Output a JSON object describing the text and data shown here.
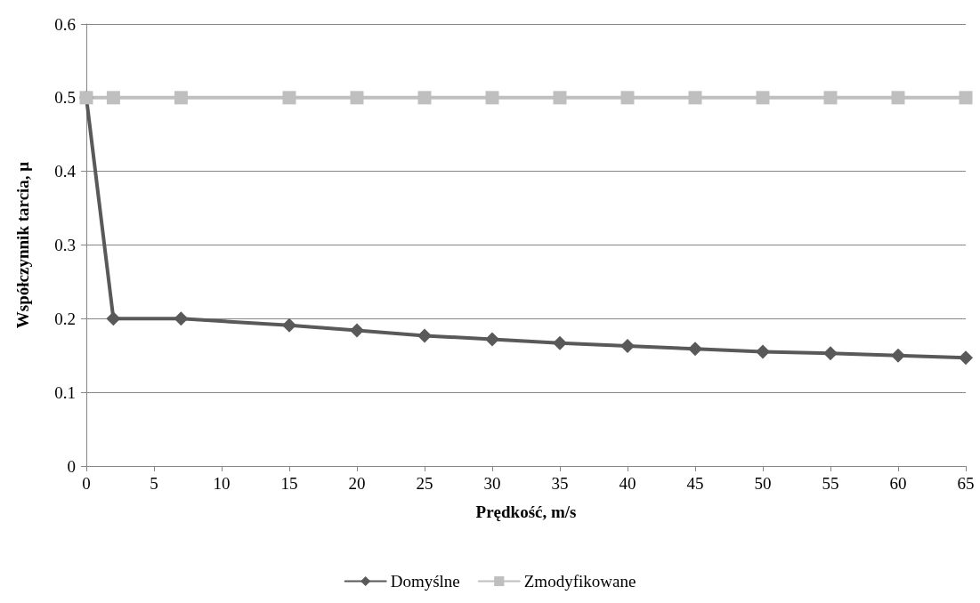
{
  "chart_data": {
    "type": "line",
    "xlabel": "Prędkość, m/s",
    "ylabel": "Współczynnik tarcia, μ",
    "x": [
      0,
      2,
      7,
      15,
      20,
      25,
      30,
      35,
      40,
      45,
      50,
      55,
      60,
      65
    ],
    "series": [
      {
        "name": "Domyślne",
        "color": "#595959",
        "marker": "diamond",
        "values": [
          0.5,
          0.2,
          0.2,
          0.191,
          0.184,
          0.177,
          0.172,
          0.167,
          0.163,
          0.159,
          0.155,
          0.153,
          0.15,
          0.147
        ]
      },
      {
        "name": "Zmodyfikowane",
        "color": "#bfbfbf",
        "marker": "square",
        "values": [
          0.5,
          0.5,
          0.5,
          0.5,
          0.5,
          0.5,
          0.5,
          0.5,
          0.5,
          0.5,
          0.5,
          0.5,
          0.5,
          0.5
        ]
      }
    ],
    "xlim": [
      0,
      65
    ],
    "xticks": [
      0,
      5,
      10,
      15,
      20,
      25,
      30,
      35,
      40,
      45,
      50,
      55,
      60,
      65
    ],
    "ylim": [
      0,
      0.6
    ],
    "yticks": [
      0,
      0.1,
      0.2,
      0.3,
      0.4,
      0.5,
      0.6
    ],
    "grid": "y",
    "legend": "bottom",
    "line_style": "solid"
  }
}
